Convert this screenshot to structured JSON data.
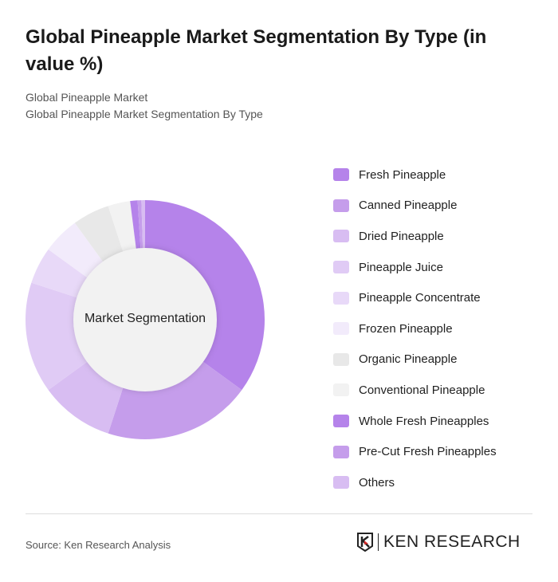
{
  "title": "Global Pineapple Market Segmentation By Type (in value %)",
  "subtitle_1": "Global Pineapple Market",
  "subtitle_2": "Global Pineapple Market Segmentation By Type",
  "source": "Source: Ken Research Analysis",
  "logo_text": "KEN RESEARCH",
  "chart_data": {
    "type": "pie",
    "variant": "donut",
    "center_label": "Market Segmentation",
    "legend_position": "right",
    "unit": "%",
    "categories": [
      "Fresh Pineapple",
      "Canned Pineapple",
      "Dried Pineapple",
      "Pineapple Juice",
      "Pineapple Concentrate",
      "Frozen Pineapple",
      "Organic Pineapple",
      "Conventional Pineapple",
      "Whole Fresh Pineapples",
      "Pre-Cut Fresh Pineapples",
      "Others"
    ],
    "values": [
      35,
      20,
      10,
      15,
      5,
      5,
      5,
      3,
      1,
      0.5,
      0.5
    ],
    "colors": [
      "#b583ea",
      "#c59deb",
      "#d8bdf2",
      "#e0cbf5",
      "#e8d9f8",
      "#f2ebfb",
      "#e8e8e8",
      "#f2f2f2",
      "#b583ea",
      "#c59deb",
      "#d8bdf2"
    ]
  }
}
